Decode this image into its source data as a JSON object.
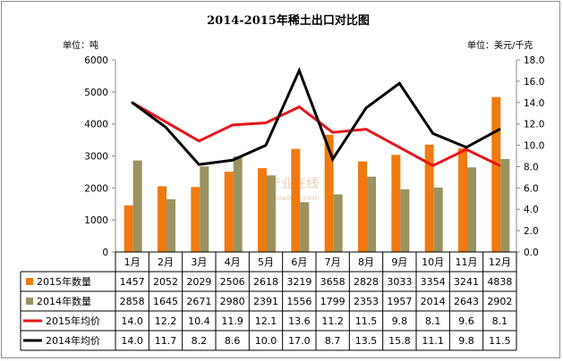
{
  "chart_data": {
    "type": "bar+line",
    "title": "2014-2015年稀土出口对比图",
    "left_unit": "单位：吨",
    "right_unit": "单位：美元/千克",
    "categories": [
      "1月",
      "2月",
      "3月",
      "4月",
      "5月",
      "6月",
      "7月",
      "8月",
      "9月",
      "10月",
      "11月",
      "12月"
    ],
    "left_axis": {
      "min": 0,
      "max": 6000,
      "step": 1000,
      "ticks": [
        "0",
        "1000",
        "2000",
        "3000",
        "4000",
        "5000",
        "6000"
      ]
    },
    "right_axis": {
      "min": 0,
      "max": 18,
      "step": 2,
      "ticks": [
        "0.0",
        "2.0",
        "4.0",
        "6.0",
        "8.0",
        "10.0",
        "12.0",
        "14.0",
        "16.0",
        "18.0"
      ]
    },
    "series": [
      {
        "name": "2015年数量",
        "kind": "bar",
        "axis": "left",
        "color": "#f07a10",
        "values": [
          1457,
          2052,
          2029,
          2506,
          2618,
          3219,
          3658,
          2828,
          3033,
          3354,
          3241,
          4838
        ],
        "labels": [
          "1457",
          "2052",
          "2029",
          "2506",
          "2618",
          "3219",
          "3658",
          "2828",
          "3033",
          "3354",
          "3241",
          "4838"
        ]
      },
      {
        "name": "2014年数量",
        "kind": "bar",
        "axis": "left",
        "color": "#9a9360",
        "values": [
          2858,
          1645,
          2671,
          2980,
          2391,
          1556,
          1799,
          2353,
          1957,
          2014,
          2643,
          2902
        ],
        "labels": [
          "2858",
          "1645",
          "2671",
          "2980",
          "2391",
          "1556",
          "1799",
          "2353",
          "1957",
          "2014",
          "2643",
          "2902"
        ]
      },
      {
        "name": "2015年均价",
        "kind": "line",
        "axis": "right",
        "color": "#e8141a",
        "values": [
          14.0,
          12.2,
          10.4,
          11.9,
          12.1,
          13.6,
          11.2,
          11.5,
          9.8,
          8.1,
          9.6,
          8.1
        ],
        "labels": [
          "14.0",
          "12.2",
          "10.4",
          "11.9",
          "12.1",
          "13.6",
          "11.2",
          "11.5",
          "9.8",
          "8.1",
          "9.6",
          "8.1"
        ]
      },
      {
        "name": "2014年均价",
        "kind": "line",
        "axis": "right",
        "color": "#000000",
        "values": [
          14.0,
          11.7,
          8.2,
          8.6,
          10.0,
          17.0,
          8.7,
          13.5,
          15.8,
          11.1,
          9.8,
          11.5
        ],
        "labels": [
          "14.0",
          "11.7",
          "8.2",
          "8.6",
          "10.0",
          "17.0",
          "8.7",
          "13.5",
          "15.8",
          "11.1",
          "9.8",
          "11.5"
        ]
      }
    ],
    "grid": false,
    "legend": "data-table-left"
  },
  "watermark": {
    "main": "产业在线",
    "sub": "ChinaIOL.com"
  }
}
